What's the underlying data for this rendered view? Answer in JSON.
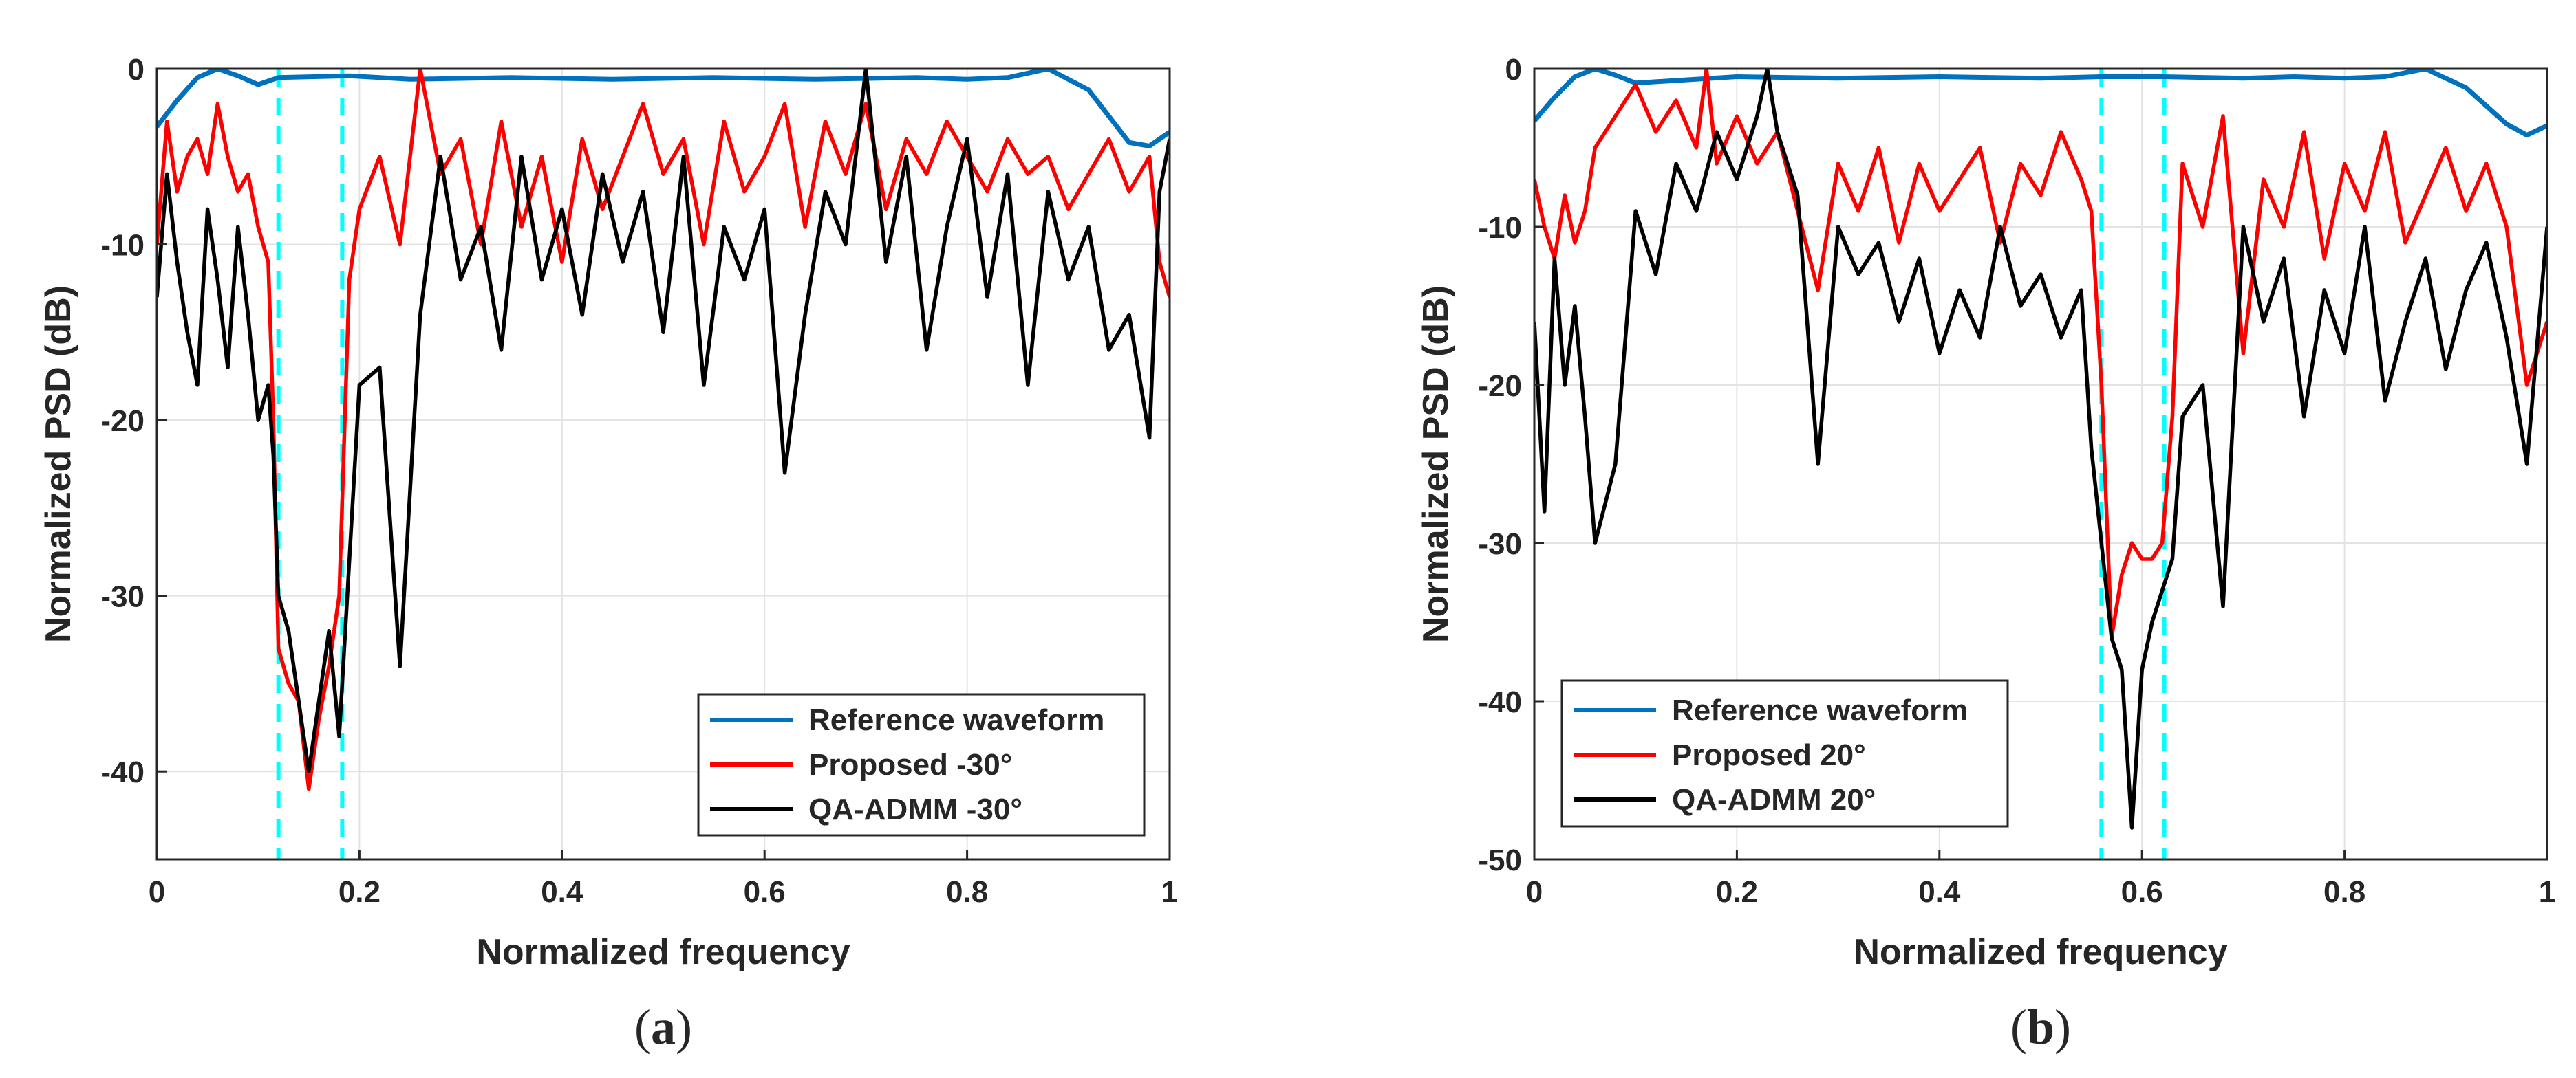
{
  "chart_data": [
    {
      "type": "line",
      "caption": {
        "prefix": "(",
        "letter": "a",
        "suffix": ")"
      },
      "xlabel": "Normalized frequency",
      "ylabel": "Normalized PSD (dB)",
      "xlim": [
        0,
        1
      ],
      "ylim": [
        -45,
        0
      ],
      "xticks": [
        0,
        0.2,
        0.4,
        0.6,
        0.8,
        1
      ],
      "xtick_labels": [
        "0",
        "0.2",
        "0.4",
        "0.6",
        "0.8",
        "1"
      ],
      "yticks": [
        0,
        -10,
        -20,
        -30,
        -40
      ],
      "ytick_labels": [
        "0",
        "-10",
        "-20",
        "-30",
        "-40"
      ],
      "grid": true,
      "legend_position": "bottom-right",
      "notch_band": [
        0.12,
        0.183
      ],
      "series": [
        {
          "name": "Reference waveform",
          "color": "#0072BD",
          "x": [
            0,
            0.02,
            0.04,
            0.06,
            0.08,
            0.1,
            0.12,
            0.19,
            0.25,
            0.35,
            0.45,
            0.55,
            0.65,
            0.75,
            0.8,
            0.84,
            0.88,
            0.92,
            0.96,
            0.98,
            1.0
          ],
          "y": [
            -3.3,
            -1.8,
            -0.5,
            0,
            -0.4,
            -0.9,
            -0.5,
            -0.4,
            -0.6,
            -0.5,
            -0.6,
            -0.5,
            -0.6,
            -0.5,
            -0.6,
            -0.5,
            0,
            -1.2,
            -4.2,
            -4.4,
            -3.6
          ]
        },
        {
          "name": "Proposed -30°",
          "color": "#FF0000",
          "x": [
            0,
            0.01,
            0.02,
            0.03,
            0.04,
            0.05,
            0.06,
            0.07,
            0.08,
            0.09,
            0.1,
            0.11,
            0.115,
            0.12,
            0.13,
            0.14,
            0.15,
            0.16,
            0.17,
            0.18,
            0.19,
            0.2,
            0.22,
            0.24,
            0.26,
            0.28,
            0.3,
            0.32,
            0.34,
            0.36,
            0.38,
            0.4,
            0.42,
            0.44,
            0.46,
            0.48,
            0.5,
            0.52,
            0.54,
            0.56,
            0.58,
            0.6,
            0.62,
            0.64,
            0.66,
            0.68,
            0.7,
            0.72,
            0.74,
            0.76,
            0.78,
            0.8,
            0.82,
            0.84,
            0.86,
            0.88,
            0.9,
            0.92,
            0.94,
            0.96,
            0.98,
            0.99,
            1.0
          ],
          "y": [
            -10,
            -3,
            -7,
            -5,
            -4,
            -6,
            -2,
            -5,
            -7,
            -6,
            -9,
            -11,
            -20,
            -33,
            -35,
            -36,
            -41,
            -37,
            -34,
            -30,
            -12,
            -8,
            -5,
            -10,
            0,
            -6,
            -4,
            -10,
            -3,
            -9,
            -5,
            -11,
            -4,
            -8,
            -5,
            -2,
            -6,
            -4,
            -10,
            -3,
            -7,
            -5,
            -2,
            -9,
            -3,
            -6,
            -2,
            -8,
            -4,
            -6,
            -3,
            -5,
            -7,
            -4,
            -6,
            -5,
            -8,
            -6,
            -4,
            -7,
            -5,
            -11,
            -13
          ]
        },
        {
          "name": "QA-ADMM -30°",
          "color": "#000000",
          "x": [
            0,
            0.01,
            0.02,
            0.03,
            0.04,
            0.05,
            0.06,
            0.07,
            0.08,
            0.09,
            0.1,
            0.11,
            0.115,
            0.12,
            0.13,
            0.14,
            0.15,
            0.16,
            0.17,
            0.18,
            0.19,
            0.2,
            0.22,
            0.24,
            0.26,
            0.28,
            0.3,
            0.32,
            0.34,
            0.36,
            0.38,
            0.4,
            0.42,
            0.44,
            0.46,
            0.48,
            0.5,
            0.52,
            0.54,
            0.56,
            0.58,
            0.6,
            0.62,
            0.64,
            0.66,
            0.68,
            0.7,
            0.72,
            0.74,
            0.76,
            0.78,
            0.8,
            0.82,
            0.84,
            0.86,
            0.88,
            0.9,
            0.92,
            0.94,
            0.96,
            0.98,
            0.99,
            1.0
          ],
          "y": [
            -13,
            -6,
            -11,
            -15,
            -18,
            -8,
            -12,
            -17,
            -9,
            -14,
            -20,
            -18,
            -22,
            -30,
            -32,
            -36,
            -40,
            -36,
            -32,
            -38,
            -28,
            -18,
            -17,
            -34,
            -14,
            -5,
            -12,
            -9,
            -16,
            -5,
            -12,
            -8,
            -14,
            -6,
            -11,
            -7,
            -15,
            -5,
            -18,
            -9,
            -12,
            -8,
            -23,
            -14,
            -7,
            -10,
            0,
            -11,
            -5,
            -16,
            -9,
            -4,
            -13,
            -6,
            -18,
            -7,
            -12,
            -9,
            -16,
            -14,
            -21,
            -7,
            -4
          ]
        }
      ]
    },
    {
      "type": "line",
      "caption": {
        "prefix": "(",
        "letter": "b",
        "suffix": ")"
      },
      "xlabel": "Normalized frequency",
      "ylabel": "Normalized PSD (dB)",
      "xlim": [
        0,
        1
      ],
      "ylim": [
        -50,
        0
      ],
      "xticks": [
        0,
        0.2,
        0.4,
        0.6,
        0.8,
        1
      ],
      "xtick_labels": [
        "0",
        "0.2",
        "0.4",
        "0.6",
        "0.8",
        "1"
      ],
      "yticks": [
        0,
        -10,
        -20,
        -30,
        -40,
        -50
      ],
      "ytick_labels": [
        "0",
        "-10",
        "-20",
        "-30",
        "-40",
        "-50"
      ],
      "grid": true,
      "legend_position": "bottom-left",
      "notch_band": [
        0.56,
        0.622
      ],
      "series": [
        {
          "name": "Reference waveform",
          "color": "#0072BD",
          "x": [
            0,
            0.02,
            0.04,
            0.06,
            0.08,
            0.1,
            0.2,
            0.3,
            0.4,
            0.5,
            0.56,
            0.62,
            0.7,
            0.75,
            0.8,
            0.84,
            0.88,
            0.92,
            0.96,
            0.98,
            1.0
          ],
          "y": [
            -3.3,
            -1.8,
            -0.5,
            0,
            -0.4,
            -0.9,
            -0.5,
            -0.6,
            -0.5,
            -0.6,
            -0.5,
            -0.5,
            -0.6,
            -0.5,
            -0.6,
            -0.5,
            0,
            -1.2,
            -3.5,
            -4.2,
            -3.6
          ]
        },
        {
          "name": "Proposed 20°",
          "color": "#FF0000",
          "x": [
            0,
            0.01,
            0.02,
            0.03,
            0.04,
            0.05,
            0.06,
            0.08,
            0.1,
            0.12,
            0.14,
            0.16,
            0.17,
            0.18,
            0.2,
            0.22,
            0.24,
            0.26,
            0.28,
            0.3,
            0.32,
            0.34,
            0.36,
            0.38,
            0.4,
            0.42,
            0.44,
            0.46,
            0.48,
            0.5,
            0.52,
            0.54,
            0.55,
            0.56,
            0.57,
            0.58,
            0.59,
            0.6,
            0.61,
            0.62,
            0.63,
            0.64,
            0.66,
            0.68,
            0.7,
            0.72,
            0.74,
            0.76,
            0.78,
            0.8,
            0.82,
            0.84,
            0.86,
            0.88,
            0.9,
            0.92,
            0.94,
            0.96,
            0.98,
            1.0
          ],
          "y": [
            -7,
            -10,
            -12,
            -8,
            -11,
            -9,
            -5,
            -3,
            -1,
            -4,
            -2,
            -5,
            0,
            -6,
            -3,
            -6,
            -4,
            -9,
            -14,
            -6,
            -9,
            -5,
            -11,
            -6,
            -9,
            -7,
            -5,
            -11,
            -6,
            -8,
            -4,
            -7,
            -9,
            -20,
            -36,
            -32,
            -30,
            -31,
            -31,
            -30,
            -22,
            -6,
            -10,
            -3,
            -18,
            -7,
            -10,
            -4,
            -12,
            -6,
            -9,
            -4,
            -11,
            -8,
            -5,
            -9,
            -6,
            -10,
            -20,
            -16
          ]
        },
        {
          "name": "QA-ADMM 20°",
          "color": "#000000",
          "x": [
            0,
            0.01,
            0.02,
            0.03,
            0.04,
            0.05,
            0.06,
            0.08,
            0.1,
            0.12,
            0.14,
            0.16,
            0.18,
            0.2,
            0.22,
            0.23,
            0.24,
            0.26,
            0.28,
            0.3,
            0.32,
            0.34,
            0.36,
            0.38,
            0.4,
            0.42,
            0.44,
            0.46,
            0.48,
            0.5,
            0.52,
            0.54,
            0.55,
            0.56,
            0.57,
            0.58,
            0.59,
            0.6,
            0.61,
            0.62,
            0.63,
            0.64,
            0.66,
            0.68,
            0.7,
            0.72,
            0.74,
            0.76,
            0.78,
            0.8,
            0.82,
            0.84,
            0.86,
            0.88,
            0.9,
            0.92,
            0.94,
            0.96,
            0.98,
            1.0
          ],
          "y": [
            -16,
            -28,
            -12,
            -20,
            -15,
            -22,
            -30,
            -25,
            -9,
            -13,
            -6,
            -9,
            -4,
            -7,
            -3,
            0,
            -4,
            -8,
            -25,
            -10,
            -13,
            -11,
            -16,
            -12,
            -18,
            -14,
            -17,
            -10,
            -15,
            -13,
            -17,
            -14,
            -24,
            -30,
            -36,
            -38,
            -48,
            -38,
            -35,
            -33,
            -31,
            -22,
            -20,
            -34,
            -10,
            -16,
            -12,
            -22,
            -14,
            -18,
            -10,
            -21,
            -16,
            -12,
            -19,
            -14,
            -11,
            -17,
            -25,
            -10
          ]
        }
      ]
    }
  ]
}
